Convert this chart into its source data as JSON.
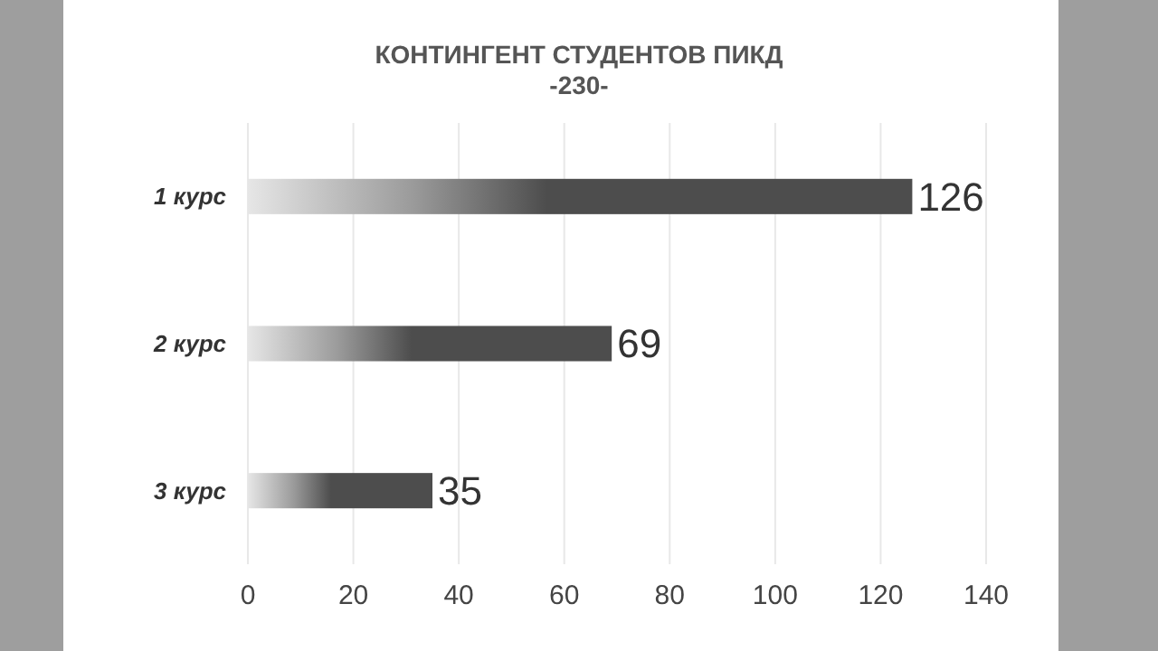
{
  "chart_data": {
    "type": "bar",
    "orientation": "horizontal",
    "title": "КОНТИНГЕНТ СТУДЕНТОВ ПИКД",
    "subtitle": "-230-",
    "categories": [
      "1 курс",
      "2 курс",
      "3 курс"
    ],
    "values": [
      126,
      69,
      35
    ],
    "color": "#4d4d4d",
    "xlim": [
      0,
      140
    ],
    "xticks": [
      0,
      20,
      40,
      60,
      80,
      100,
      120,
      140
    ],
    "grid": "x",
    "data_labels": true
  }
}
